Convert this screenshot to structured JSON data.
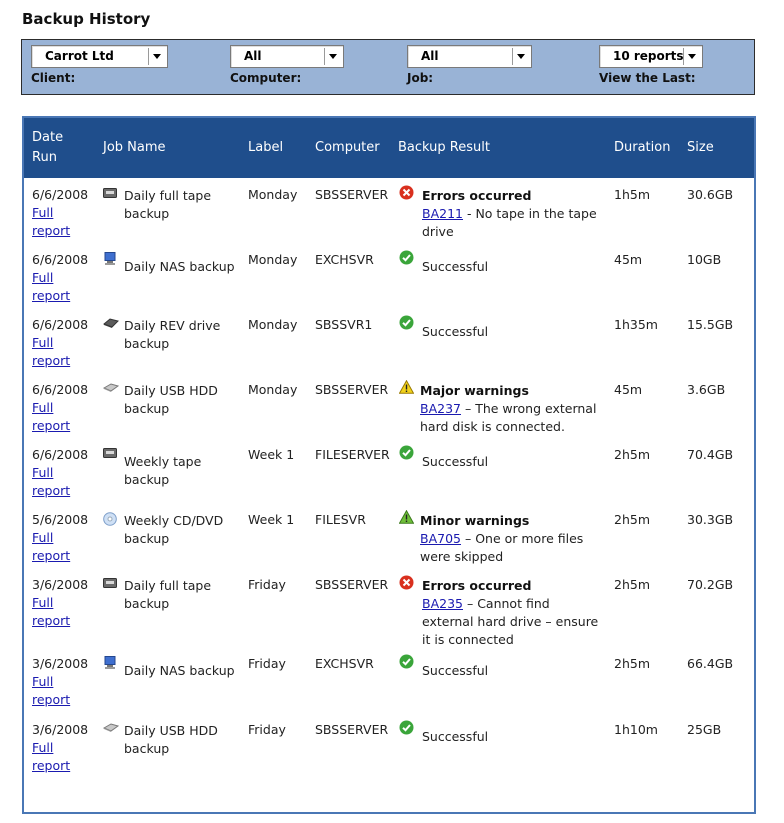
{
  "page_title": "Backup History",
  "filters": [
    {
      "key": "client",
      "value": "Carrot Ltd",
      "label": "Client:"
    },
    {
      "key": "computer",
      "value": "All",
      "label": "Computer:"
    },
    {
      "key": "job",
      "value": "All",
      "label": "Job:"
    },
    {
      "key": "view_last",
      "value": "10 reports",
      "label": "View the Last:"
    }
  ],
  "columns": {
    "date_run": "Date Run",
    "job_name": "Job Name",
    "label": "Label",
    "computer": "Computer",
    "backup_result": "Backup Result",
    "duration": "Duration",
    "size": "Size"
  },
  "full_report_link": "Full report",
  "rows": [
    {
      "date": "6/6/2008",
      "job": "Daily full tape backup",
      "job_icon": "tape-drive-icon",
      "label": "Monday",
      "computer": "SBSSERVER",
      "status": "error",
      "status_icon": "error-icon",
      "result_title": "Errors occurred",
      "result_code": "BA211",
      "result_msg": " - No tape in the tape drive",
      "duration": "1h5m",
      "size": "30.6GB"
    },
    {
      "date": "6/6/2008",
      "job": "Daily NAS backup",
      "job_icon": "nas-computer-icon",
      "label": "Monday",
      "computer": "EXCHSVR",
      "status": "success",
      "status_icon": "success-icon",
      "result_title": "Successful",
      "result_code": "",
      "result_msg": "",
      "duration": "45m",
      "size": "10GB"
    },
    {
      "date": "6/6/2008",
      "job": "Daily REV drive backup",
      "job_icon": "rev-drive-icon",
      "label": "Monday",
      "computer": "SBSSVR1",
      "status": "success",
      "status_icon": "success-icon",
      "result_title": "Successful",
      "result_code": "",
      "result_msg": "",
      "duration": "1h35m",
      "size": "15.5GB"
    },
    {
      "date": "6/6/2008",
      "job": "Daily USB HDD backup",
      "job_icon": "usb-hdd-icon",
      "label": "Monday",
      "computer": "SBSSERVER",
      "status": "warning",
      "status_icon": "warning-icon",
      "result_title": "Major warnings",
      "result_code": "BA237",
      "result_msg": " – The wrong external hard disk is connected.",
      "duration": "45m",
      "size": "3.6GB"
    },
    {
      "date": "6/6/2008",
      "job": "Weekly tape backup",
      "job_icon": "tape-drive-icon",
      "label": "Week 1",
      "computer": "FILESERVER",
      "status": "success",
      "status_icon": "success-icon",
      "result_title": "Successful",
      "result_code": "",
      "result_msg": "",
      "duration": "2h5m",
      "size": "70.4GB"
    },
    {
      "date": "5/6/2008",
      "job": "Weekly CD/DVD backup",
      "job_icon": "cd-dvd-icon",
      "label": "Week 1",
      "computer": "FILESVR",
      "status": "minor",
      "status_icon": "minor-warning-icon",
      "result_title": "Minor warnings",
      "result_code": "BA705",
      "result_msg": " – One or more files were skipped",
      "duration": "2h5m",
      "size": "30.3GB"
    },
    {
      "date": "3/6/2008",
      "job": "Daily full tape backup",
      "job_icon": "tape-drive-icon",
      "label": "Friday",
      "computer": "SBSSERVER",
      "status": "error",
      "status_icon": "error-icon",
      "result_title": "Errors occurred",
      "result_code": "BA235",
      "result_msg": " – Cannot find external hard drive – ensure it is connected",
      "duration": "2h5m",
      "size": "70.2GB"
    },
    {
      "date": "3/6/2008",
      "job": "Daily NAS backup",
      "job_icon": "nas-computer-icon",
      "label": "Friday",
      "computer": "EXCHSVR",
      "status": "success",
      "status_icon": "success-icon",
      "result_title": "Successful",
      "result_code": "",
      "result_msg": "",
      "duration": "2h5m",
      "size": "66.4GB"
    },
    {
      "date": "3/6/2008",
      "job": "Daily USB HDD backup",
      "job_icon": "usb-hdd-icon",
      "label": "Friday",
      "computer": "SBSSERVER",
      "status": "success",
      "status_icon": "success-icon",
      "result_title": "Successful",
      "result_code": "",
      "result_msg": "",
      "duration": "1h10m",
      "size": "25GB"
    }
  ]
}
